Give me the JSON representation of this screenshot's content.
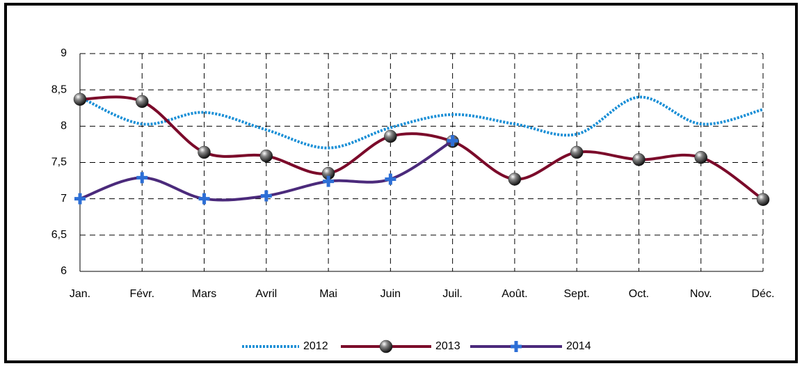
{
  "chart_data": {
    "type": "line",
    "categories": [
      "Jan.",
      "Févr.",
      "Mars",
      "Avril",
      "Mai",
      "Juin",
      "Juil.",
      "Août.",
      "Sept.",
      "Oct.",
      "Nov.",
      "Déc."
    ],
    "series": [
      {
        "name": "2012",
        "color": "#1a8fd6",
        "line_style": "dotted",
        "marker": "none",
        "values": [
          8.4,
          8.03,
          8.19,
          7.95,
          7.7,
          7.98,
          8.16,
          8.03,
          7.89,
          8.4,
          8.03,
          8.23
        ]
      },
      {
        "name": "2013",
        "color": "#7b0a2a",
        "line_style": "solid",
        "marker": "sphere",
        "values": [
          8.37,
          8.34,
          7.64,
          7.59,
          7.35,
          7.86,
          7.79,
          7.27,
          7.64,
          7.54,
          7.57,
          6.99
        ]
      },
      {
        "name": "2014",
        "color": "#4b2a7b",
        "line_style": "solid",
        "marker": "cross",
        "values": [
          7.0,
          7.29,
          7.0,
          7.04,
          7.24,
          7.27,
          7.8,
          null,
          null,
          null,
          null,
          null
        ]
      }
    ],
    "ylim": [
      6,
      9
    ],
    "yticks": [
      6,
      {
        "value": 6.5,
        "label": "6,5"
      },
      7,
      {
        "value": 7.5,
        "label": "7,5"
      },
      8,
      {
        "value": 8.5,
        "label": "8,5"
      },
      9
    ],
    "grid": true,
    "smooth": true,
    "legend": "bottom"
  }
}
